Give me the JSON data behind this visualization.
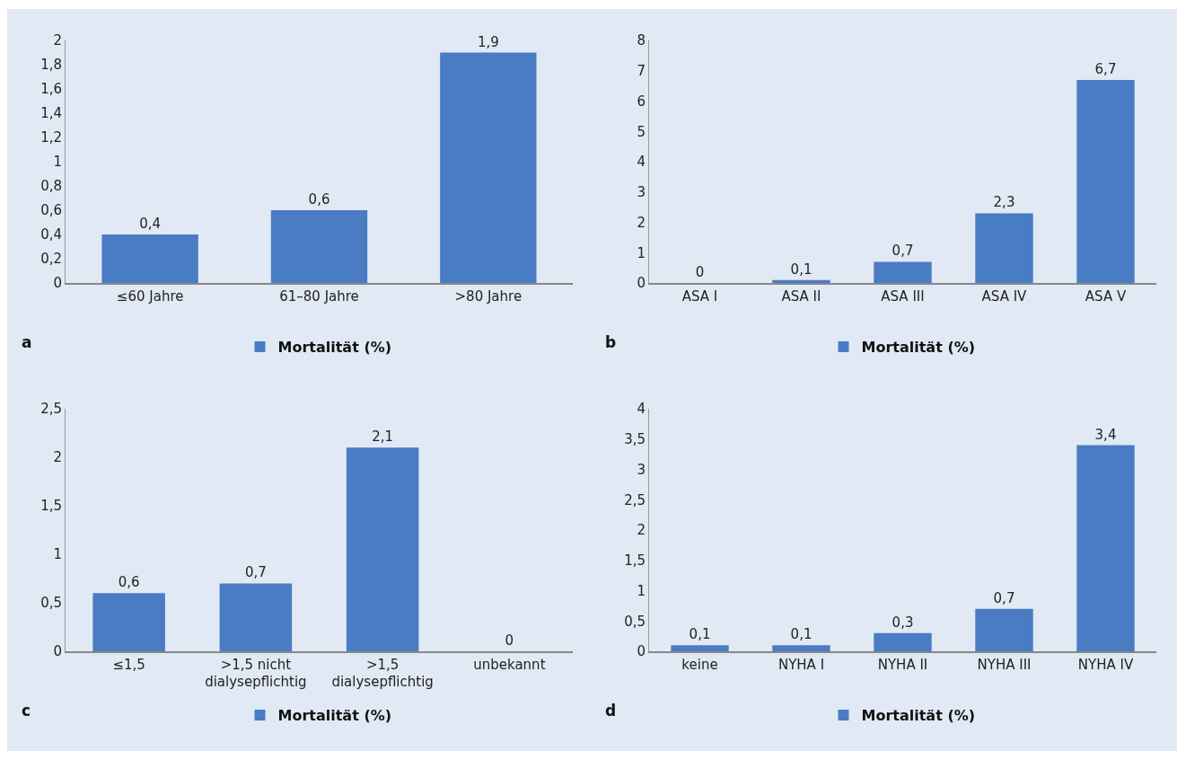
{
  "chart_data": [
    {
      "type": "bar",
      "categories": [
        "≤60 Jahre",
        "61–80 Jahre",
        ">80 Jahre"
      ],
      "series": [
        {
          "name": "Mortalität (%)",
          "color": "#4a7cc4",
          "values": [
            0.4,
            0.6,
            1.9
          ],
          "value_labels": [
            "0,4",
            "0,6",
            "1,9"
          ]
        }
      ],
      "ylim": [
        0,
        2
      ],
      "yticks": [
        0,
        {
          "value": 0.2,
          "label": "0,2"
        },
        {
          "value": 0.4,
          "label": "0,4"
        },
        {
          "value": 0.6,
          "label": "0,6"
        },
        {
          "value": 0.8,
          "label": "0,8"
        },
        1,
        {
          "value": 1.2,
          "label": "1,2"
        },
        {
          "value": 1.4,
          "label": "1,4"
        },
        {
          "value": 1.6,
          "label": "1,6"
        },
        {
          "value": 1.8,
          "label": "1,8"
        },
        2
      ],
      "grid": false,
      "legend": "bottom",
      "annotations": [
        "a"
      ]
    },
    {
      "type": "bar",
      "categories": [
        "ASA I",
        "ASA II",
        "ASA III",
        "ASA IV",
        "ASA V"
      ],
      "series": [
        {
          "name": "Mortalität (%)",
          "color": "#4a7cc4",
          "values": [
            0,
            0.1,
            0.7,
            2.3,
            6.7
          ],
          "value_labels": [
            "0",
            "0,1",
            "0,7",
            "2,3",
            "6,7"
          ]
        }
      ],
      "ylim": [
        0,
        8
      ],
      "yticks": [
        0,
        1,
        2,
        3,
        4,
        5,
        6,
        7,
        8
      ],
      "grid": false,
      "legend": "bottom",
      "annotations": [
        "b"
      ]
    },
    {
      "type": "bar",
      "categories": [
        "≤1,5",
        ">1,5 nicht\ndialysepflichtig",
        ">1,5\ndialysepflichtig",
        "unbekannt"
      ],
      "series": [
        {
          "name": "Mortalität (%)",
          "color": "#4a7cc4",
          "values": [
            0.6,
            0.7,
            2.1,
            0
          ],
          "value_labels": [
            "0,6",
            "0,7",
            "2,1",
            "0"
          ]
        }
      ],
      "ylim": [
        0,
        2.5
      ],
      "yticks": [
        0,
        {
          "value": 0.5,
          "label": "0,5"
        },
        1,
        {
          "value": 1.5,
          "label": "1,5"
        },
        2,
        {
          "value": 2.5,
          "label": "2,5"
        }
      ],
      "grid": false,
      "legend": "bottom",
      "annotations": [
        "c"
      ]
    },
    {
      "type": "bar",
      "categories": [
        "keine",
        "NYHA I",
        "NYHA II",
        "NYHA III",
        "NYHA IV"
      ],
      "series": [
        {
          "name": "Mortalität (%)",
          "color": "#4a7cc4",
          "values": [
            0.1,
            0.1,
            0.3,
            0.7,
            3.4
          ],
          "value_labels": [
            "0,1",
            "0,1",
            "0,3",
            "0,7",
            "3,4"
          ]
        }
      ],
      "ylim": [
        0,
        4
      ],
      "yticks": [
        0,
        {
          "value": 0.5,
          "label": "0,5"
        },
        1,
        {
          "value": 1.5,
          "label": "1,5"
        },
        2,
        {
          "value": 2.5,
          "label": "2,5"
        },
        3,
        {
          "value": 3.5,
          "label": "3,5"
        },
        4
      ],
      "grid": false,
      "legend": "bottom",
      "annotations": [
        "d"
      ]
    }
  ]
}
